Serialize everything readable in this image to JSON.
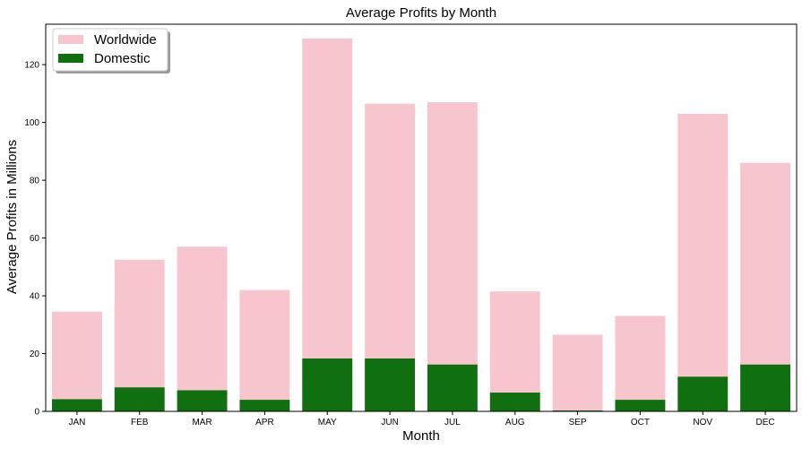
{
  "chart_data": {
    "type": "bar",
    "title": "Average Profits by Month",
    "xlabel": "Month",
    "ylabel": "Average Profits in Millions",
    "categories": [
      "JAN",
      "FEB",
      "MAR",
      "APR",
      "MAY",
      "JUN",
      "JUL",
      "AUG",
      "SEP",
      "OCT",
      "NOV",
      "DEC"
    ],
    "series": [
      {
        "name": "Worldwide",
        "color": "#f7c5cd",
        "values": [
          34.5,
          52.5,
          57,
          42,
          129,
          106.5,
          107,
          41.5,
          26.5,
          33,
          103,
          86
        ]
      },
      {
        "name": "Domestic",
        "color": "#107010",
        "values": [
          4.2,
          8.3,
          7.3,
          4.0,
          18.3,
          18.3,
          16.2,
          6.5,
          0.3,
          4.0,
          12.0,
          16.2
        ]
      }
    ],
    "ylim": [
      0,
      134
    ],
    "yticks": [
      0,
      20,
      40,
      60,
      80,
      100,
      120
    ],
    "legend": "top-left",
    "grid": false
  }
}
